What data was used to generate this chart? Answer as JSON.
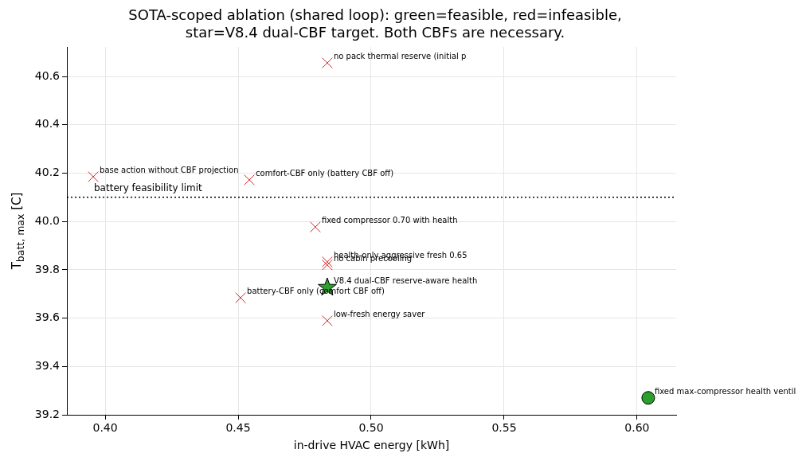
{
  "chart_data": {
    "type": "scatter",
    "title": "SOTA-scoped ablation (shared loop): green=feasible, red=infeasible, star=V8.4 dual-CBF target. Both CBFs are necessary.",
    "xlabel": "in-drive HVAC energy [kWh]",
    "ylabel": "T$_{batt, max}$ [C]",
    "xlim": [
      0.3856,
      0.6147
    ],
    "xticks": [
      {
        "value": 0.4,
        "label": "0.40"
      },
      {
        "value": 0.45,
        "label": "0.45"
      },
      {
        "value": 0.5,
        "label": "0.50"
      },
      {
        "value": 0.55,
        "label": "0.55"
      },
      {
        "value": 0.6,
        "label": "0.60"
      }
    ],
    "ylim": [
      39.2,
      40.722
    ],
    "yticks": [
      39.2,
      39.4,
      39.6,
      39.8,
      {
        "value": 40.0,
        "label": "40.0"
      },
      40.2,
      40.4,
      40.6
    ],
    "grid": true,
    "legend": false,
    "ref_lines": [
      {
        "axis": "y",
        "value": 40.1,
        "label": "battery feasibility limit",
        "color": "#000000",
        "line_style": "dotted"
      }
    ],
    "series": [
      {
        "color": "#d62728",
        "marker": "cross",
        "x": [
          0.4835,
          0.3955,
          0.4542,
          0.479,
          0.4835,
          0.4835,
          0.4509,
          0.4835
        ],
        "values": [
          40.656,
          40.185,
          40.172,
          39.977,
          39.833,
          39.82,
          39.684,
          39.589
        ],
        "value_labels": [
          "no pack thermal reserve (initial p",
          "base action without CBF projection",
          "comfort-CBF only (battery CBF off)",
          "fixed compressor 0.70 with health",
          "health-only aggressive fresh 0.65",
          "no cabin precooling",
          "battery-CBF only (comfort CBF off)",
          "low-fresh energy saver"
        ]
      },
      {
        "color": "#2ca02c",
        "marker": "circle",
        "x": [
          0.6042
        ],
        "values": [
          39.27
        ],
        "value_labels": [
          "fixed max-compressor health ventil"
        ]
      },
      {
        "color": "#2ca02c",
        "marker": "star",
        "x": [
          0.4835
        ],
        "values": [
          39.727
        ],
        "value_labels": [
          "V8.4 dual-CBF reserve-aware health"
        ]
      }
    ]
  }
}
